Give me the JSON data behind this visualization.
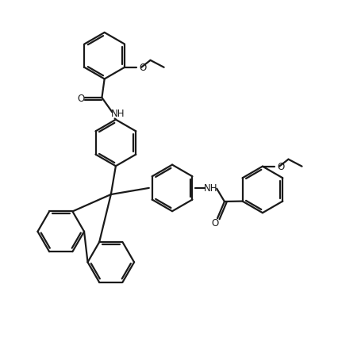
{
  "background": "#ffffff",
  "line_color": "#1a1a1a",
  "line_width": 1.6,
  "font_size": 8.5,
  "figsize": [
    4.26,
    4.27
  ],
  "dpi": 100,
  "xlim": [
    0,
    10
  ],
  "ylim": [
    0,
    10.5
  ]
}
